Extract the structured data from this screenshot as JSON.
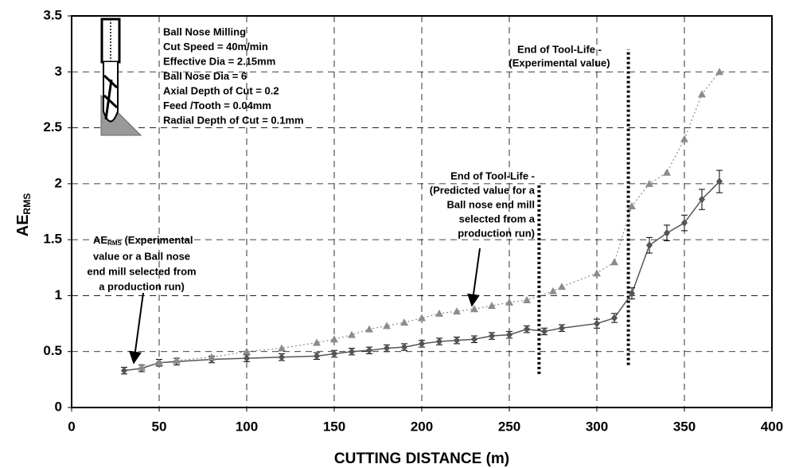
{
  "chart_data": {
    "type": "line",
    "xlabel": "CUTTING DISTANCE (m)",
    "ylabel": "AE",
    "ylabel_sub": "RMS",
    "xlim": [
      0,
      400
    ],
    "xticks": [
      0,
      50,
      100,
      150,
      200,
      250,
      300,
      350,
      400
    ],
    "ylim": [
      0,
      3.5
    ],
    "yticks": [
      0,
      0.5,
      1,
      1.5,
      2,
      2.5,
      3,
      3.5
    ],
    "grid": true,
    "series": [
      {
        "color": "#555555",
        "marker": "diamond",
        "linestyle": "solid",
        "x": [
          30,
          40,
          50,
          60,
          80,
          100,
          120,
          140,
          150,
          160,
          170,
          180,
          190,
          200,
          210,
          220,
          230,
          240,
          250,
          260,
          270,
          280,
          300,
          310,
          320,
          330,
          340,
          350,
          360,
          370
        ],
        "values": [
          0.33,
          0.35,
          0.4,
          0.41,
          0.43,
          0.44,
          0.45,
          0.46,
          0.48,
          0.5,
          0.51,
          0.53,
          0.54,
          0.57,
          0.59,
          0.6,
          0.61,
          0.64,
          0.65,
          0.7,
          0.68,
          0.71,
          0.75,
          0.8,
          1.02,
          1.45,
          1.56,
          1.65,
          1.86,
          2.02
        ],
        "errors": [
          0.03,
          0.03,
          0.03,
          0.03,
          0.03,
          0.03,
          0.03,
          0.03,
          0.03,
          0.03,
          0.03,
          0.03,
          0.03,
          0.03,
          0.03,
          0.03,
          0.03,
          0.03,
          0.03,
          0.03,
          0.03,
          0.03,
          0.04,
          0.04,
          0.05,
          0.07,
          0.07,
          0.07,
          0.09,
          0.1
        ]
      },
      {
        "color": "#8c8c8c",
        "marker": "triangle",
        "linestyle": "dotted",
        "x": [
          40,
          50,
          60,
          80,
          100,
          120,
          140,
          150,
          160,
          170,
          180,
          190,
          200,
          210,
          220,
          230,
          240,
          250,
          260,
          275,
          280,
          300,
          310,
          320,
          330,
          340,
          350,
          360,
          370
        ],
        "values": [
          0.36,
          0.4,
          0.42,
          0.45,
          0.5,
          0.53,
          0.58,
          0.61,
          0.65,
          0.7,
          0.73,
          0.76,
          0.8,
          0.84,
          0.86,
          0.88,
          0.91,
          0.94,
          0.96,
          1.04,
          1.08,
          1.2,
          1.3,
          1.8,
          2.0,
          2.1,
          2.4,
          2.8,
          3.0
        ]
      }
    ],
    "reference_lines": [
      {
        "x": 267,
        "y0": 0.3,
        "y1": 2.0
      },
      {
        "x": 318,
        "y0": 0.38,
        "y1": 3.2
      }
    ],
    "tool_info": [
      "Ball Nose Milling",
      "Cut Speed = 40m/min",
      "Effective Dia = 2.15mm",
      "Ball Nose Dia = 6",
      "Axial Depth of Cut = 0.2",
      "Feed /Tooth = 0.04mm",
      "Radial Depth of Cut = 0.1mm"
    ],
    "annotation_experimental": [
      "End of Tool-Life -",
      "(Experimental value)"
    ],
    "annotation_predicted": [
      "End of Tool-Life -",
      "(Predicted value for a",
      "Ball nose end mill",
      "selected from a",
      "production run)"
    ],
    "annotation_ae": {
      "head": "AE",
      "head_sub": "RMS",
      "head_rest": " (Experimental",
      "lines": [
        "value or a Ball nose",
        "end mill selected from",
        "a production run)"
      ]
    }
  }
}
